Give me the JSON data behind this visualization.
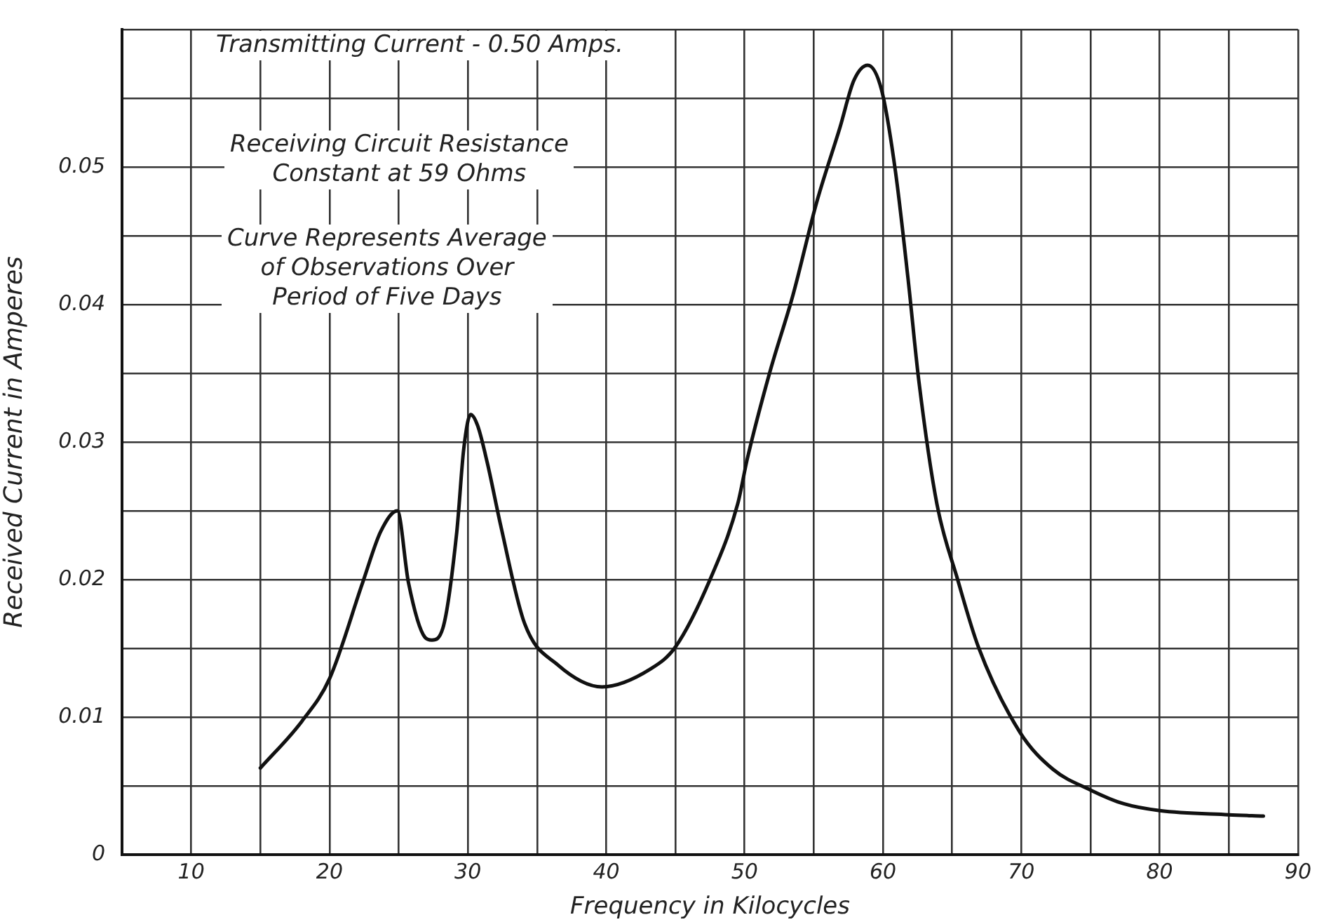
{
  "chart_data": {
    "type": "line",
    "xlabel": "Frequency in Kilocycles",
    "ylabel": "Received Current in Amperes",
    "annotations": [
      "Transmitting Current - 0.50 Amps.",
      "Receiving Circuit Resistance\nConstant at 59 Ohms",
      "Curve Represents Average\nof Observations Over\nPeriod of Five Days"
    ],
    "x": [
      15,
      18,
      20,
      22.4,
      23.7,
      24.9,
      25.7,
      26.9,
      27.4,
      28.2,
      29.2,
      29.7,
      30.2,
      30.7,
      31.4,
      32.4,
      34.1,
      36.5,
      39.7,
      43.2,
      45,
      47.5,
      49.5,
      50.2,
      51.8,
      53.5,
      55.2,
      56.9,
      57.9,
      58.9,
      59.9,
      60.9,
      61.8,
      62.6,
      63.9,
      65.4,
      66.9,
      69.9,
      72.3,
      75,
      77.4,
      80,
      85,
      87.5
    ],
    "series": [
      {
        "color": "#111111",
        "values": [
          0.0063,
          0.0097,
          0.0128,
          0.0198,
          0.0235,
          0.025,
          0.0198,
          0.0158,
          0.0156,
          0.0165,
          0.0235,
          0.0295,
          0.032,
          0.0312,
          0.0285,
          0.0238,
          0.0168,
          0.0138,
          0.0122,
          0.0135,
          0.0151,
          0.02,
          0.0255,
          0.0288,
          0.035,
          0.0407,
          0.0474,
          0.0529,
          0.0563,
          0.0574,
          0.0556,
          0.0497,
          0.042,
          0.0344,
          0.0255,
          0.02,
          0.0151,
          0.0089,
          0.0062,
          0.0047,
          0.0037,
          0.0032,
          0.0029,
          0.0028
        ]
      }
    ],
    "xlim": [
      5,
      90
    ],
    "ylim": [
      0,
      0.06
    ],
    "xticks": [
      {
        "value": 5,
        "label": null
      },
      10,
      {
        "value": 15,
        "label": null
      },
      20,
      {
        "value": 25,
        "label": null
      },
      30,
      {
        "value": 35,
        "label": null
      },
      40,
      {
        "value": 45,
        "label": null
      },
      50,
      {
        "value": 55,
        "label": null
      },
      60,
      {
        "value": 65,
        "label": null
      },
      70,
      {
        "value": 75,
        "label": null
      },
      80,
      {
        "value": 85,
        "label": null
      },
      90
    ],
    "yticks": [
      0,
      {
        "value": 0.005,
        "label": null
      },
      0.01,
      {
        "value": 0.015,
        "label": null
      },
      0.02,
      {
        "value": 0.025,
        "label": null
      },
      0.03,
      {
        "value": 0.035,
        "label": null
      },
      0.04,
      {
        "value": 0.045,
        "label": null
      },
      0.05,
      {
        "value": 0.055,
        "label": null
      },
      {
        "value": 0.06,
        "label": null
      }
    ],
    "grid": true,
    "legend": false,
    "marker": "none",
    "line_style": "solid"
  }
}
